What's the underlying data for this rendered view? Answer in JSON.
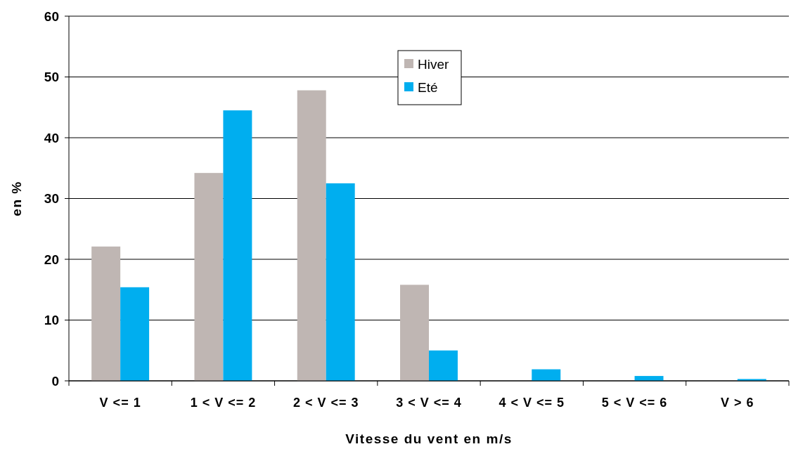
{
  "chart_data": {
    "type": "bar",
    "xlabel": "Vitesse du vent en m/s",
    "ylabel": "en %",
    "categories": [
      "V <= 1",
      "1 < V <= 2",
      "2 < V <= 3",
      "3 < V <= 4",
      "4 < V <= 5",
      "5 < V <= 6",
      "V > 6"
    ],
    "series": [
      {
        "name": "Hiver",
        "color": "#bfb6b3",
        "values": [
          22.1,
          34.2,
          47.8,
          15.8,
          0,
          0,
          0
        ]
      },
      {
        "name": "Eté",
        "color": "#00aeef",
        "values": [
          15.4,
          44.5,
          32.5,
          5.0,
          1.9,
          0.8,
          0.3
        ]
      }
    ],
    "ylim": [
      0,
      60
    ],
    "yticks": [
      0,
      10,
      20,
      30,
      40,
      50,
      60
    ],
    "grid": "y",
    "legend": "top"
  }
}
